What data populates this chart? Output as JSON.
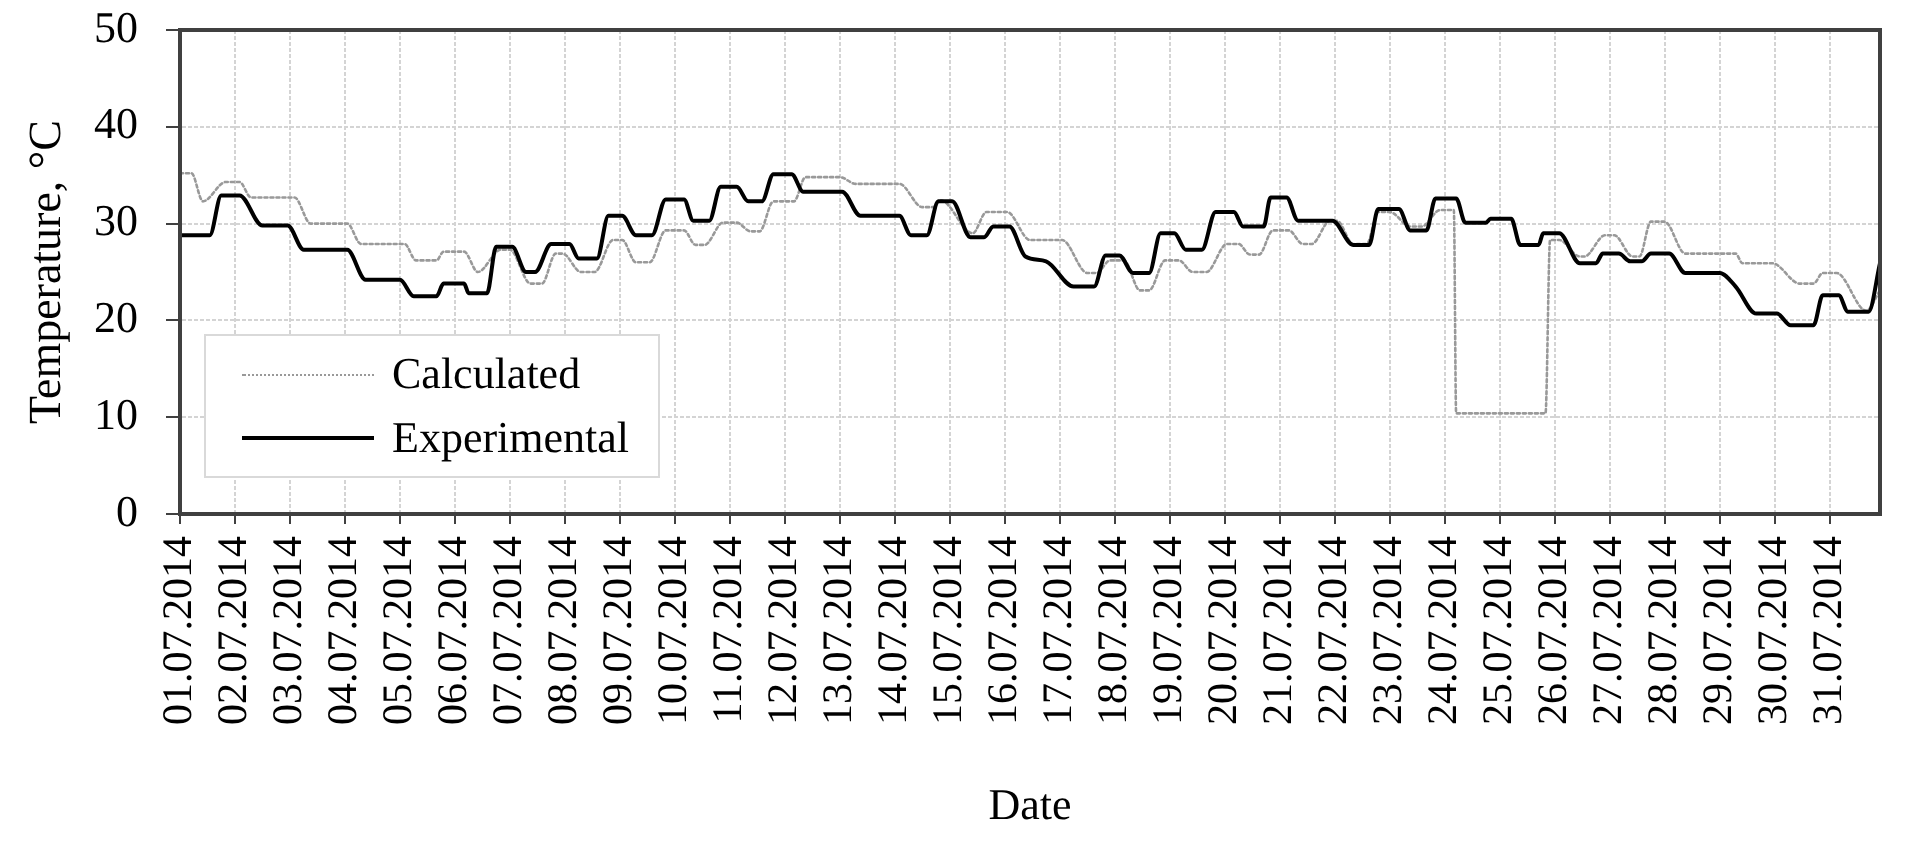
{
  "chart_data": {
    "type": "line",
    "xlabel": "Date",
    "ylabel": "Temperature, °C",
    "xlim": [
      "2014-07-01T00:00",
      "2014-07-31T22:00"
    ],
    "xticks": [
      {
        "value": "2014-07-01",
        "label": "01.07.2014"
      },
      {
        "value": "2014-07-02",
        "label": "02.07.2014"
      },
      {
        "value": "2014-07-03",
        "label": "03.07.2014"
      },
      {
        "value": "2014-07-04",
        "label": "04.07.2014"
      },
      {
        "value": "2014-07-05",
        "label": "05.07.2014"
      },
      {
        "value": "2014-07-06",
        "label": "06.07.2014"
      },
      {
        "value": "2014-07-07",
        "label": "07.07.2014"
      },
      {
        "value": "2014-07-08",
        "label": "08.07.2014"
      },
      {
        "value": "2014-07-09",
        "label": "09.07.2014"
      },
      {
        "value": "2014-07-10",
        "label": "10.07.2014"
      },
      {
        "value": "2014-07-11",
        "label": "11.07.2014"
      },
      {
        "value": "2014-07-12",
        "label": "12.07.2014"
      },
      {
        "value": "2014-07-13",
        "label": "13.07.2014"
      },
      {
        "value": "2014-07-14",
        "label": "14.07.2014"
      },
      {
        "value": "2014-07-15",
        "label": "15.07.2014"
      },
      {
        "value": "2014-07-16",
        "label": "16.07.2014"
      },
      {
        "value": "2014-07-17",
        "label": "17.07.2014"
      },
      {
        "value": "2014-07-18",
        "label": "18.07.2014"
      },
      {
        "value": "2014-07-19",
        "label": "19.07.2014"
      },
      {
        "value": "2014-07-20",
        "label": "20.07.2014"
      },
      {
        "value": "2014-07-21",
        "label": "21.07.2014"
      },
      {
        "value": "2014-07-22",
        "label": "22.07.2014"
      },
      {
        "value": "2014-07-23",
        "label": "23.07.2014"
      },
      {
        "value": "2014-07-24",
        "label": "24.07.2014"
      },
      {
        "value": "2014-07-25",
        "label": "25.07.2014"
      },
      {
        "value": "2014-07-26",
        "label": "26.07.2014"
      },
      {
        "value": "2014-07-27",
        "label": "27.07.2014"
      },
      {
        "value": "2014-07-28",
        "label": "28.07.2014"
      },
      {
        "value": "2014-07-29",
        "label": "29.07.2014"
      },
      {
        "value": "2014-07-30",
        "label": "30.07.2014"
      },
      {
        "value": "2014-07-31",
        "label": "31.07.2014"
      }
    ],
    "ylim": [
      0,
      50
    ],
    "yticks": [
      0,
      10,
      20,
      30,
      40,
      50
    ],
    "grid": true,
    "legend": "bottom left",
    "series": [
      {
        "name": "Calculated",
        "color": "#999999",
        "line_style": "dotted",
        "x": [
          "2014-07-01T00:00",
          "2014-07-01T05:00",
          "2014-07-01T10:00",
          "2014-07-01T20:00",
          "2014-07-02T02:00",
          "2014-07-02T07:00",
          "2014-07-03T02:00",
          "2014-07-03T09:00",
          "2014-07-04T01:00",
          "2014-07-04T07:00",
          "2014-07-05T02:00",
          "2014-07-05T07:00",
          "2014-07-05T16:00",
          "2014-07-05T19:00",
          "2014-07-06T04:00",
          "2014-07-06T10:00",
          "2014-07-06T20:00",
          "2014-07-07T00:00",
          "2014-07-07T09:00",
          "2014-07-07T14:00",
          "2014-07-07T20:00",
          "2014-07-07T23:00",
          "2014-07-08T07:00",
          "2014-07-08T13:00",
          "2014-07-08T21:00",
          "2014-07-09T01:00",
          "2014-07-09T07:00",
          "2014-07-09T13:00",
          "2014-07-09T20:00",
          "2014-07-10T04:00",
          "2014-07-10T09:00",
          "2014-07-10T13:00",
          "2014-07-10T21:00",
          "2014-07-11T03:00",
          "2014-07-11T09:00",
          "2014-07-11T13:00",
          "2014-07-11T19:00",
          "2014-07-12T04:00",
          "2014-07-12T09:00",
          "2014-07-13T00:00",
          "2014-07-13T07:00",
          "2014-07-14T02:00",
          "2014-07-14T12:00",
          "2014-07-14T17:00",
          "2014-07-14T20:00",
          "2014-07-15T10:00",
          "2014-07-15T16:00",
          "2014-07-16T01:00",
          "2014-07-16T11:00",
          "2014-07-17T01:00",
          "2014-07-17T12:00",
          "2014-07-17T16:00",
          "2014-07-17T22:00",
          "2014-07-18T04:00",
          "2014-07-18T11:00",
          "2014-07-18T15:00",
          "2014-07-18T22:00",
          "2014-07-19T04:00",
          "2014-07-19T10:00",
          "2014-07-19T16:00",
          "2014-07-20T01:00",
          "2014-07-20T06:00",
          "2014-07-20T11:00",
          "2014-07-20T15:00",
          "2014-07-20T21:00",
          "2014-07-21T04:00",
          "2014-07-21T10:00",
          "2014-07-21T14:00",
          "2014-07-21T22:00",
          "2014-07-22T01:00",
          "2014-07-22T08:00",
          "2014-07-22T14:00",
          "2014-07-22T19:00",
          "2014-07-23T00:00",
          "2014-07-23T09:00",
          "2014-07-23T14:00",
          "2014-07-23T22:00",
          "2014-07-24T04:00",
          "2014-07-24T05:00",
          "2014-07-25T20:00",
          "2014-07-25T22:00",
          "2014-07-26T02:00",
          "2014-07-26T11:00",
          "2014-07-26T13:00",
          "2014-07-26T22:00",
          "2014-07-27T02:00",
          "2014-07-27T10:00",
          "2014-07-27T13:00",
          "2014-07-27T18:00",
          "2014-07-28T00:00",
          "2014-07-28T09:00",
          "2014-07-29T07:00",
          "2014-07-29T10:00",
          "2014-07-29T23:00",
          "2014-07-30T11:00",
          "2014-07-30T17:00",
          "2014-07-30T21:00",
          "2014-07-31T03:00",
          "2014-07-31T16:00",
          "2014-07-31T22:00"
        ],
        "values": [
          35.2,
          35.2,
          32.3,
          34.3,
          34.3,
          32.7,
          32.7,
          30.0,
          30.0,
          27.9,
          27.9,
          26.2,
          26.2,
          27.1,
          27.1,
          25.0,
          27.3,
          27.3,
          23.8,
          23.8,
          26.9,
          26.9,
          25.0,
          25.0,
          28.3,
          28.3,
          26.0,
          26.0,
          29.3,
          29.3,
          27.8,
          27.8,
          30.1,
          30.1,
          29.2,
          29.2,
          32.3,
          32.3,
          34.8,
          34.8,
          34.1,
          34.1,
          31.7,
          31.7,
          32.4,
          29.0,
          31.2,
          31.2,
          28.3,
          28.3,
          24.9,
          24.9,
          26.2,
          26.2,
          23.1,
          23.1,
          26.2,
          26.2,
          25.0,
          25.0,
          27.9,
          27.9,
          26.8,
          26.8,
          29.3,
          29.3,
          27.9,
          27.9,
          30.3,
          30.3,
          27.9,
          27.9,
          31.2,
          31.2,
          29.7,
          29.7,
          31.4,
          31.4,
          10.4,
          10.4,
          28.3,
          28.3,
          26.6,
          26.6,
          28.8,
          28.8,
          26.6,
          26.6,
          30.2,
          30.2,
          26.9,
          26.9,
          25.9,
          25.9,
          23.8,
          23.8,
          24.9,
          24.9,
          21.0,
          23.1
        ]
      },
      {
        "name": "Experimental",
        "color": "#000000",
        "line_style": "solid",
        "x": [
          "2014-07-01T00:00",
          "2014-07-01T13:00",
          "2014-07-01T18:00",
          "2014-07-02T02:00",
          "2014-07-02T12:00",
          "2014-07-02T23:00",
          "2014-07-03T06:00",
          "2014-07-04T01:00",
          "2014-07-04T09:00",
          "2014-07-05T00:00",
          "2014-07-05T06:00",
          "2014-07-05T16:00",
          "2014-07-05T19:00",
          "2014-07-06T04:00",
          "2014-07-06T06:00",
          "2014-07-06T14:00",
          "2014-07-06T18:00",
          "2014-07-07T01:00",
          "2014-07-07T07:00",
          "2014-07-07T11:00",
          "2014-07-07T18:00",
          "2014-07-08T02:00",
          "2014-07-08T06:00",
          "2014-07-08T14:00",
          "2014-07-08T19:00",
          "2014-07-09T01:00",
          "2014-07-09T07:00",
          "2014-07-09T14:00",
          "2014-07-09T20:00",
          "2014-07-10T04:00",
          "2014-07-10T08:00",
          "2014-07-10T15:00",
          "2014-07-10T20:00",
          "2014-07-11T03:00",
          "2014-07-11T08:00",
          "2014-07-11T14:00",
          "2014-07-11T19:00",
          "2014-07-12T03:00",
          "2014-07-12T08:00",
          "2014-07-13T01:00",
          "2014-07-13T09:00",
          "2014-07-14T02:00",
          "2014-07-14T07:00",
          "2014-07-14T14:00",
          "2014-07-14T19:00",
          "2014-07-15T01:00",
          "2014-07-15T09:00",
          "2014-07-15T15:00",
          "2014-07-15T19:00",
          "2014-07-16T02:00",
          "2014-07-16T09:00",
          "2014-07-16T18:00",
          "2014-07-17T06:00",
          "2014-07-17T15:00",
          "2014-07-17T20:00",
          "2014-07-18T02:00",
          "2014-07-18T08:00",
          "2014-07-18T15:00",
          "2014-07-18T20:00",
          "2014-07-19T02:00",
          "2014-07-19T07:00",
          "2014-07-19T14:00",
          "2014-07-19T20:00",
          "2014-07-20T04:00",
          "2014-07-20T08:00",
          "2014-07-20T17:00",
          "2014-07-20T20:00",
          "2014-07-21T03:00",
          "2014-07-21T08:00",
          "2014-07-21T23:00",
          "2014-07-22T08:00",
          "2014-07-22T15:00",
          "2014-07-22T19:00",
          "2014-07-23T04:00",
          "2014-07-23T09:00",
          "2014-07-23T16:00",
          "2014-07-23T20:00",
          "2014-07-24T05:00",
          "2014-07-24T09:00",
          "2014-07-24T18:00",
          "2014-07-24T20:00",
          "2014-07-25T05:00",
          "2014-07-25T09:00",
          "2014-07-25T17:00",
          "2014-07-25T19:00",
          "2014-07-26T02:00",
          "2014-07-26T11:00",
          "2014-07-26T18:00",
          "2014-07-26T21:00",
          "2014-07-27T04:00",
          "2014-07-27T09:00",
          "2014-07-27T14:00",
          "2014-07-27T18:00",
          "2014-07-28T02:00",
          "2014-07-28T09:00",
          "2014-07-29T00:00",
          "2014-07-29T07:00",
          "2014-07-29T16:00",
          "2014-07-30T01:00",
          "2014-07-30T07:00",
          "2014-07-30T17:00",
          "2014-07-30T21:00",
          "2014-07-31T04:00",
          "2014-07-31T08:00",
          "2014-07-31T17:00",
          "2014-07-31T22:00"
        ],
        "values": [
          28.8,
          28.8,
          32.9,
          32.9,
          29.8,
          29.8,
          27.3,
          27.3,
          24.2,
          24.2,
          22.5,
          22.5,
          23.8,
          23.8,
          22.8,
          22.8,
          27.6,
          27.6,
          25.0,
          25.0,
          27.9,
          27.9,
          26.4,
          26.4,
          30.8,
          30.8,
          28.8,
          28.8,
          32.5,
          32.5,
          30.3,
          30.3,
          33.8,
          33.8,
          32.3,
          32.3,
          35.1,
          35.1,
          33.3,
          33.3,
          30.8,
          30.8,
          28.8,
          28.8,
          32.3,
          32.3,
          28.6,
          28.6,
          29.7,
          29.7,
          26.6,
          26.1,
          23.5,
          23.5,
          26.7,
          26.7,
          24.9,
          24.9,
          29.0,
          29.0,
          27.3,
          27.3,
          31.2,
          31.2,
          29.7,
          29.7,
          32.7,
          32.7,
          30.3,
          30.3,
          27.8,
          27.8,
          31.5,
          31.5,
          29.3,
          29.3,
          32.6,
          32.6,
          30.1,
          30.1,
          30.5,
          30.5,
          27.8,
          27.8,
          29.0,
          29.0,
          25.9,
          25.9,
          26.9,
          26.9,
          26.1,
          26.1,
          26.9,
          26.9,
          24.9,
          24.9,
          23.5,
          20.7,
          20.7,
          19.5,
          19.5,
          22.6,
          22.6,
          20.9,
          20.9,
          25.9
        ]
      }
    ]
  }
}
